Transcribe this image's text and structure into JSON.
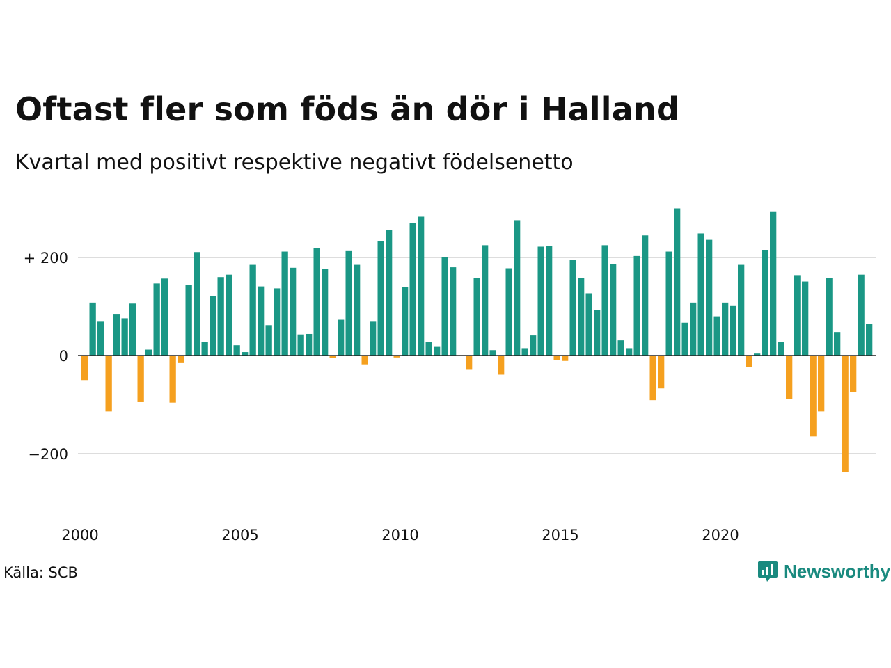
{
  "title": "Oftast fler som föds än dör i Halland",
  "subtitle": "Kvartal med positivt respektive negativt födelsenetto",
  "source": "Källa: SCB",
  "brand": {
    "name": "Newsworthy",
    "icon": "newsworthy-logo-icon"
  },
  "colors": {
    "positive": "#1a9785",
    "negative": "#f5a01f",
    "grid": "#dddddd",
    "zero": "#222222"
  },
  "chart_data": {
    "type": "bar",
    "title": "Oftast fler som föds än dör i Halland",
    "subtitle": "Kvartal med positivt respektive negativt födelsenetto",
    "x_start": 2000,
    "x_step": 0.25,
    "x_ticks": [
      2000,
      2005,
      2010,
      2015,
      2020
    ],
    "x_tick_labels": [
      "2000",
      "2005",
      "2010",
      "2015",
      "2020"
    ],
    "y_ticks": [
      200,
      0,
      -200
    ],
    "y_tick_labels": [
      "+ 200",
      "0",
      "−200"
    ],
    "ylim": [
      -340,
      310
    ],
    "grid": true,
    "values": [
      -50,
      108,
      69,
      -114,
      85,
      76,
      106,
      -95,
      12,
      147,
      157,
      -96,
      -14,
      144,
      211,
      27,
      122,
      160,
      165,
      21,
      7,
      185,
      141,
      62,
      137,
      212,
      179,
      43,
      44,
      219,
      177,
      -5,
      73,
      213,
      185,
      -18,
      69,
      233,
      256,
      -4,
      139,
      270,
      283,
      27,
      19,
      200,
      180,
      0,
      -29,
      158,
      225,
      11,
      -39,
      178,
      276,
      15,
      41,
      222,
      224,
      -9,
      -11,
      195,
      158,
      127,
      93,
      225,
      186,
      31,
      15,
      203,
      245,
      -91,
      -67,
      212,
      300,
      67,
      108,
      249,
      236,
      80,
      108,
      101,
      185,
      -24,
      4,
      215,
      294,
      27,
      -89,
      164,
      151,
      -165,
      -114,
      158,
      48,
      -237,
      -75,
      165,
      65
    ]
  }
}
